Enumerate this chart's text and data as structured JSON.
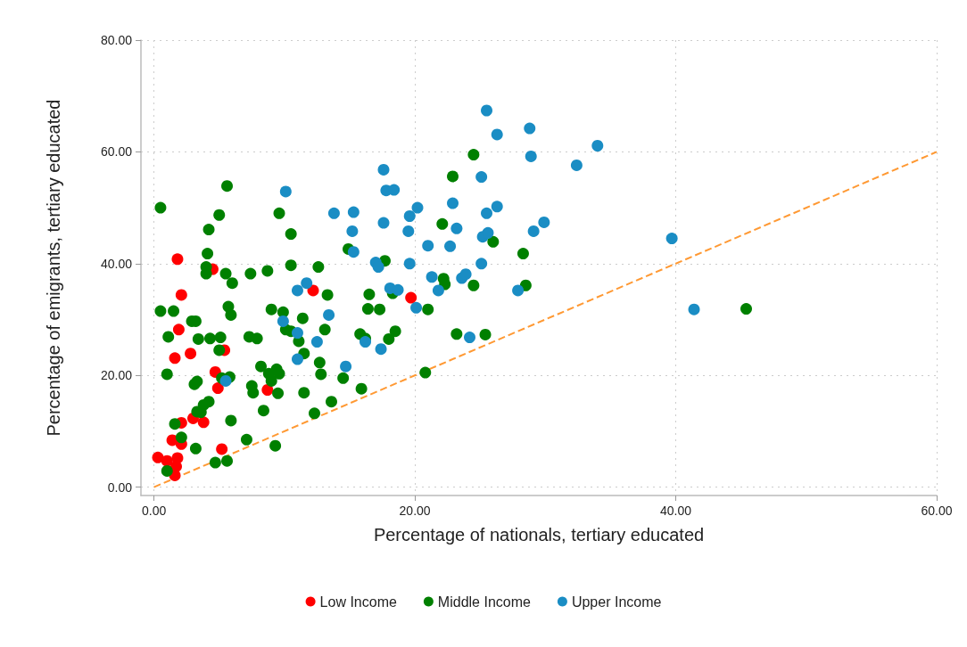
{
  "chart_data": {
    "type": "scatter",
    "xlabel": "Percentage of nationals, tertiary educated",
    "ylabel": "Percentage of emigrants, tertiary educated",
    "xlim": [
      -1,
      60
    ],
    "ylim": [
      -1.5,
      80
    ],
    "xticks": [
      {
        "value": 0,
        "label": "0.00"
      },
      {
        "value": 20,
        "label": "20.00"
      },
      {
        "value": 40,
        "label": "40.00"
      },
      {
        "value": 60,
        "label": "60.00"
      }
    ],
    "yticks": [
      {
        "value": 0,
        "label": "0.00"
      },
      {
        "value": 20,
        "label": "20.00"
      },
      {
        "value": 40,
        "label": "40.00"
      },
      {
        "value": 60,
        "label": "60.00"
      },
      {
        "value": 80,
        "label": "80.00"
      }
    ],
    "grid": true,
    "legend": "bottom",
    "marker": "circle",
    "series": [
      {
        "name": "Low Income",
        "color": "#ff0000",
        "x": [
          0.3,
          1.0,
          1.4,
          1.6,
          1.8,
          1.9,
          2.1,
          2.1,
          2.1,
          1.8,
          1.7,
          1.6,
          2.8,
          3.0,
          3.8,
          4.5,
          4.7,
          4.9,
          5.4,
          5.2,
          8.7,
          12.2,
          19.7
        ],
        "values": [
          5.3,
          4.7,
          8.4,
          23.1,
          40.8,
          28.2,
          34.4,
          11.5,
          7.7,
          5.2,
          3.7,
          2.1,
          23.9,
          12.3,
          11.6,
          39.0,
          20.6,
          17.7,
          24.5,
          6.8,
          17.4,
          35.2,
          33.9
        ]
      },
      {
        "name": "Middle Income",
        "color": "#008000",
        "x": [
          0.5,
          0.5,
          1.0,
          1.1,
          1.0,
          1.5,
          1.6,
          2.1,
          2.9,
          3.2,
          3.1,
          3.3,
          3.3,
          3.2,
          3.4,
          3.6,
          3.8,
          4.0,
          4.0,
          4.1,
          4.2,
          4.2,
          4.3,
          4.7,
          5.0,
          5.0,
          5.1,
          5.2,
          5.5,
          5.6,
          5.7,
          5.6,
          5.9,
          6.0,
          5.9,
          5.8,
          7.1,
          7.3,
          7.4,
          7.5,
          7.6,
          7.9,
          8.2,
          8.4,
          8.7,
          8.8,
          9.0,
          9.0,
          9.3,
          9.4,
          9.5,
          9.6,
          9.6,
          9.9,
          10.1,
          10.5,
          10.5,
          10.5,
          11.1,
          11.4,
          11.5,
          11.5,
          12.3,
          12.6,
          12.7,
          12.8,
          13.1,
          13.3,
          13.6,
          14.5,
          14.9,
          15.8,
          15.9,
          16.4,
          16.5,
          16.2,
          17.3,
          17.7,
          18.0,
          18.5,
          18.3,
          20.8,
          21.0,
          22.1,
          22.2,
          22.3,
          22.9,
          23.2,
          24.5,
          24.5,
          25.4,
          26.0,
          28.3,
          28.5,
          45.4
        ],
        "values": [
          50.0,
          31.5,
          20.2,
          26.9,
          2.9,
          31.5,
          11.3,
          8.9,
          29.7,
          29.7,
          18.4,
          18.9,
          13.5,
          6.9,
          26.5,
          13.4,
          14.7,
          39.4,
          38.2,
          41.8,
          46.1,
          15.3,
          26.6,
          4.4,
          48.7,
          24.5,
          26.8,
          19.5,
          38.2,
          53.9,
          32.3,
          4.7,
          30.8,
          36.5,
          11.9,
          19.7,
          8.5,
          26.9,
          38.2,
          18.1,
          16.9,
          26.6,
          21.6,
          13.7,
          38.7,
          20.3,
          19.0,
          31.8,
          7.4,
          21.1,
          16.8,
          49.0,
          20.3,
          31.3,
          28.2,
          27.9,
          45.3,
          39.7,
          26.1,
          30.2,
          23.9,
          16.9,
          13.2,
          39.4,
          22.3,
          20.2,
          28.2,
          34.4,
          15.3,
          19.5,
          42.6,
          27.4,
          17.6,
          31.9,
          34.5,
          26.6,
          31.8,
          40.5,
          26.5,
          27.9,
          34.7,
          20.5,
          31.8,
          47.1,
          37.3,
          36.3,
          55.6,
          27.4,
          59.5,
          36.1,
          27.3,
          43.9,
          41.8,
          36.1,
          31.9
        ]
      },
      {
        "name": "Upper Income",
        "color": "#1a8dc4",
        "x": [
          5.5,
          9.9,
          10.1,
          11.0,
          11.0,
          11.0,
          11.7,
          12.5,
          13.4,
          13.8,
          14.7,
          15.3,
          15.2,
          15.3,
          16.2,
          17.0,
          17.2,
          17.4,
          17.6,
          17.6,
          17.8,
          18.4,
          18.1,
          18.7,
          19.5,
          19.6,
          19.6,
          20.2,
          20.1,
          21.0,
          21.3,
          21.8,
          22.7,
          22.9,
          23.2,
          23.6,
          23.9,
          24.2,
          25.1,
          25.1,
          25.2,
          25.5,
          25.5,
          25.6,
          26.3,
          26.3,
          27.9,
          28.8,
          28.9,
          29.1,
          29.9,
          32.4,
          34.0,
          39.7,
          41.4
        ],
        "values": [
          19.0,
          29.7,
          52.9,
          35.2,
          27.6,
          22.9,
          36.5,
          26.0,
          30.8,
          49.0,
          21.6,
          49.2,
          45.8,
          42.1,
          26.0,
          40.2,
          39.4,
          24.7,
          56.8,
          47.3,
          53.1,
          53.2,
          35.6,
          35.3,
          45.8,
          40.0,
          48.5,
          50.0,
          32.1,
          43.2,
          37.6,
          35.2,
          43.1,
          50.8,
          46.3,
          37.4,
          38.1,
          26.8,
          55.5,
          40.0,
          44.8,
          67.4,
          49.0,
          45.5,
          63.1,
          50.2,
          35.2,
          64.2,
          59.2,
          45.8,
          47.4,
          57.6,
          61.1,
          44.5,
          31.8
        ]
      },
      {
        "type": "line",
        "color": "#ff9933",
        "line_style": "dashed",
        "marker": "none",
        "x": [
          0,
          60
        ],
        "values": [
          0,
          60
        ]
      }
    ]
  }
}
